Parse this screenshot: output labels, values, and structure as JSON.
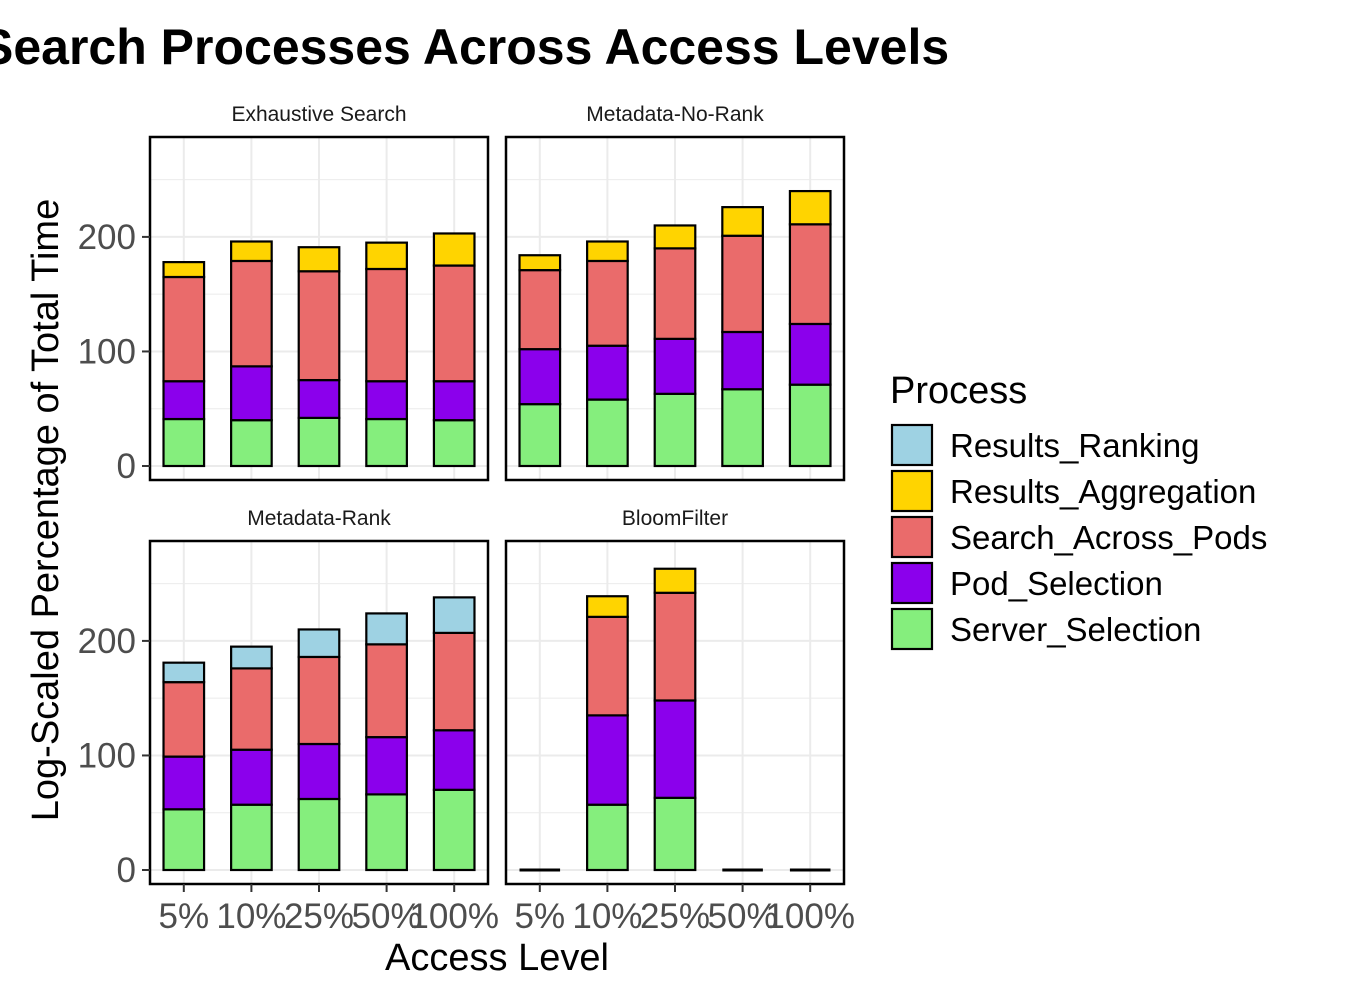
{
  "chart_data": {
    "type": "bar",
    "stacked": true,
    "faceted": true,
    "title": "Search Processes Across Access Levels",
    "xlabel": "Access Level",
    "ylabel": "Log-Scaled Percentage of Total Time",
    "ylim": [
      0,
      275
    ],
    "yticks": [
      0,
      100,
      200
    ],
    "grid": true,
    "legend_position": "right",
    "categories": [
      "5%",
      "10%",
      "25%",
      "50%",
      "100%"
    ],
    "legend": {
      "title": "Process",
      "entries": [
        "Results_Ranking",
        "Results_Aggregation",
        "Search_Across_Pods",
        "Pod_Selection",
        "Server_Selection"
      ]
    },
    "colors": {
      "Server_Selection": "#85EE7D",
      "Pod_Selection": "#8B00EC",
      "Search_Across_Pods": "#EA6B6B",
      "Results_Aggregation": "#FFD400",
      "Results_Ranking": "#9ED2E3"
    },
    "panels": [
      {
        "name": "Exhaustive Search",
        "series": [
          {
            "name": "Server_Selection",
            "values": [
              41,
              40,
              42,
              41,
              40
            ]
          },
          {
            "name": "Pod_Selection",
            "values": [
              33,
              47,
              33,
              33,
              34
            ]
          },
          {
            "name": "Search_Across_Pods",
            "values": [
              91,
              92,
              95,
              98,
              101
            ]
          },
          {
            "name": "Results_Aggregation",
            "values": [
              13,
              17,
              21,
              23,
              28
            ]
          },
          {
            "name": "Results_Ranking",
            "values": [
              0,
              0,
              0,
              0,
              0
            ]
          }
        ]
      },
      {
        "name": "Metadata-No-Rank",
        "series": [
          {
            "name": "Server_Selection",
            "values": [
              54,
              58,
              63,
              67,
              71
            ]
          },
          {
            "name": "Pod_Selection",
            "values": [
              48,
              47,
              48,
              50,
              53
            ]
          },
          {
            "name": "Search_Across_Pods",
            "values": [
              69,
              74,
              79,
              84,
              87
            ]
          },
          {
            "name": "Results_Aggregation",
            "values": [
              13,
              17,
              20,
              25,
              29
            ]
          },
          {
            "name": "Results_Ranking",
            "values": [
              0,
              0,
              0,
              0,
              0
            ]
          }
        ]
      },
      {
        "name": "Metadata-Rank",
        "series": [
          {
            "name": "Server_Selection",
            "values": [
              53,
              57,
              62,
              66,
              70
            ]
          },
          {
            "name": "Pod_Selection",
            "values": [
              46,
              48,
              48,
              50,
              52
            ]
          },
          {
            "name": "Search_Across_Pods",
            "values": [
              65,
              71,
              76,
              81,
              85
            ]
          },
          {
            "name": "Results_Aggregation",
            "values": [
              0,
              0,
              0,
              0,
              0
            ]
          },
          {
            "name": "Results_Ranking",
            "values": [
              17,
              19,
              24,
              27,
              31
            ]
          }
        ]
      },
      {
        "name": "BloomFilter",
        "series": [
          {
            "name": "Server_Selection",
            "values": [
              0,
              57,
              63,
              0,
              0
            ]
          },
          {
            "name": "Pod_Selection",
            "values": [
              0,
              78,
              85,
              0,
              0
            ]
          },
          {
            "name": "Search_Across_Pods",
            "values": [
              0,
              86,
              94,
              0,
              0
            ]
          },
          {
            "name": "Results_Aggregation",
            "values": [
              0,
              18,
              21,
              0,
              0
            ]
          },
          {
            "name": "Results_Ranking",
            "values": [
              0,
              0,
              0,
              0,
              0
            ]
          }
        ]
      }
    ]
  }
}
